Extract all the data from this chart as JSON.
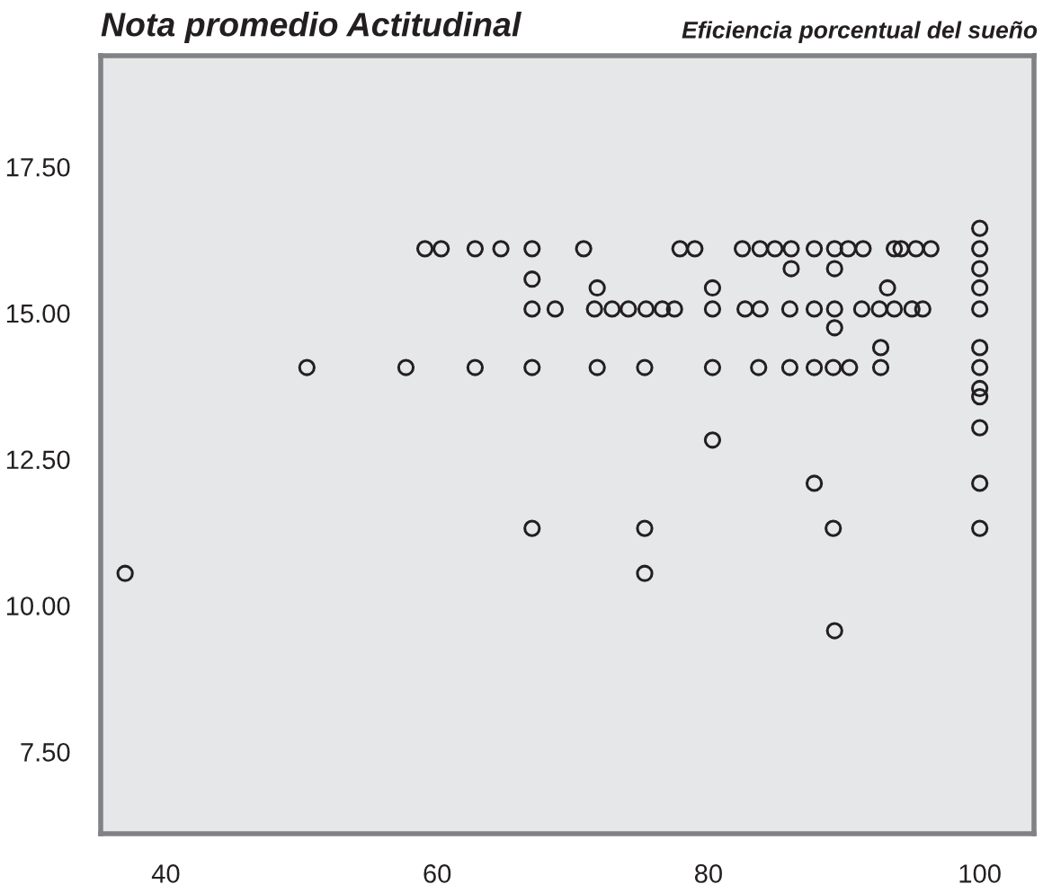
{
  "chart_data": {
    "type": "scatter",
    "ylabel": "Nota promedio Actitudinal",
    "xlabel": "Eficiencia porcentual del sueño",
    "marker": "circle",
    "grid": false,
    "xlim": [
      35.2,
      104
    ],
    "xticks": [
      40,
      60,
      80,
      100
    ],
    "ylim": [
      6.1,
      19.4
    ],
    "yticks": [
      {
        "value": 7.5,
        "label": "7.50"
      },
      {
        "value": 10,
        "label": "10.00"
      },
      {
        "value": 12.5,
        "label": "12.50"
      },
      {
        "value": 15,
        "label": "15.00"
      },
      {
        "value": 17.5,
        "label": "17.50"
      }
    ],
    "series": [
      {
        "color": "#231f20",
        "x": [
          59.1,
          60.3,
          62.8,
          64.7,
          67.0,
          70.8,
          77.9,
          79.0,
          82.5,
          83.8,
          84.9,
          86.1,
          87.8,
          89.3,
          90.3,
          91.4,
          93.7,
          94.2,
          95.3,
          96.4,
          100,
          100,
          86.1,
          89.3,
          100,
          67.0,
          71.8,
          80.3,
          93.2,
          100,
          67.0,
          68.7,
          71.6,
          72.9,
          74.1,
          75.4,
          76.6,
          77.5,
          80.3,
          82.7,
          83.8,
          86.0,
          87.8,
          89.3,
          91.3,
          92.6,
          93.7,
          95.0,
          95.8,
          100,
          89.3,
          92.7,
          100,
          50.4,
          57.7,
          62.8,
          67.0,
          71.8,
          75.3,
          80.3,
          83.7,
          86.0,
          87.8,
          89.2,
          90.4,
          92.7,
          100,
          100,
          100,
          100,
          80.3,
          87.8,
          100,
          67.0,
          75.3,
          89.2,
          100,
          37.0,
          75.3,
          89.3
        ],
        "values": [
          16.1,
          16.1,
          16.1,
          16.1,
          16.1,
          16.1,
          16.1,
          16.1,
          16.1,
          16.1,
          16.1,
          16.1,
          16.1,
          16.1,
          16.1,
          16.1,
          16.1,
          16.1,
          16.1,
          16.1,
          16.1,
          16.45,
          15.76,
          15.76,
          15.76,
          15.58,
          15.43,
          15.43,
          15.43,
          15.43,
          15.07,
          15.07,
          15.07,
          15.07,
          15.07,
          15.07,
          15.07,
          15.07,
          15.07,
          15.07,
          15.07,
          15.07,
          15.07,
          15.07,
          15.07,
          15.07,
          15.07,
          15.07,
          15.07,
          15.07,
          14.75,
          14.41,
          14.41,
          14.07,
          14.07,
          14.07,
          14.07,
          14.07,
          14.07,
          14.07,
          14.07,
          14.07,
          14.07,
          14.07,
          14.07,
          14.07,
          14.07,
          13.71,
          13.57,
          13.04,
          12.83,
          12.09,
          12.09,
          11.32,
          11.32,
          11.32,
          11.32,
          10.55,
          10.55,
          9.57
        ]
      }
    ]
  }
}
